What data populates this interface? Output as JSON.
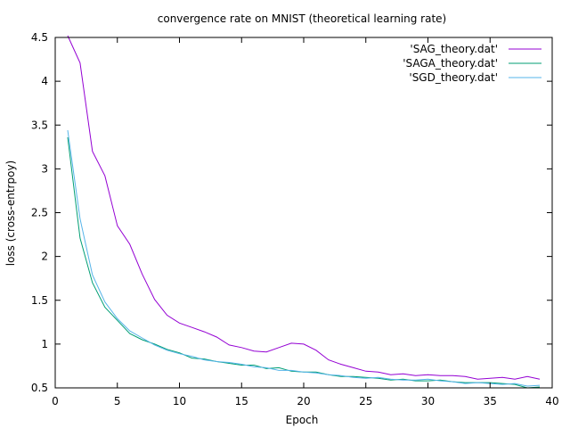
{
  "chart_data": {
    "type": "line",
    "title": "convergence rate on MNIST (theoretical learning rate)",
    "xlabel": "Epoch",
    "ylabel": "loss (cross-entrpoy)",
    "xlim": [
      0,
      40
    ],
    "ylim": [
      0.5,
      4.5
    ],
    "xticks": [
      0,
      5,
      10,
      15,
      20,
      25,
      30,
      35,
      40
    ],
    "yticks": [
      0.5,
      1,
      1.5,
      2,
      2.5,
      3,
      3.5,
      4,
      4.5
    ],
    "xtick_labels": [
      "0",
      "5",
      "10",
      "15",
      "20",
      "25",
      "30",
      "35",
      "40"
    ],
    "ytick_labels": [
      "0.5",
      "1",
      "1.5",
      "2",
      "2.5",
      "3",
      "3.5",
      "4",
      "4.5"
    ],
    "grid": false,
    "legend_position": "top-right",
    "series": [
      {
        "name": "'SAG_theory.dat'",
        "color": "#9400d3",
        "x": [
          1,
          2,
          3,
          4,
          5,
          6,
          7,
          8,
          9,
          10,
          11,
          12,
          13,
          14,
          15,
          16,
          17,
          18,
          19,
          20,
          21,
          22,
          23,
          24,
          25,
          26,
          27,
          28,
          29,
          30,
          31,
          32,
          33,
          34,
          35,
          36,
          37,
          38,
          39
        ],
        "y": [
          4.52,
          4.21,
          3.2,
          2.92,
          2.35,
          2.14,
          1.8,
          1.51,
          1.33,
          1.24,
          1.19,
          1.14,
          1.08,
          0.99,
          0.96,
          0.92,
          0.91,
          0.96,
          1.01,
          1.0,
          0.93,
          0.82,
          0.77,
          0.73,
          0.69,
          0.68,
          0.65,
          0.66,
          0.64,
          0.65,
          0.64,
          0.64,
          0.63,
          0.6,
          0.61,
          0.62,
          0.6,
          0.63,
          0.6
        ]
      },
      {
        "name": "'SAGA_theory.dat'",
        "color": "#009e73",
        "x": [
          1,
          2,
          3,
          4,
          5,
          6,
          7,
          8,
          9,
          10,
          11,
          12,
          13,
          14,
          15,
          16,
          17,
          18,
          19,
          20,
          21,
          22,
          23,
          24,
          25,
          26,
          27,
          28,
          29,
          30,
          31,
          32,
          33,
          34,
          35,
          36,
          37,
          38,
          39
        ],
        "y": [
          3.36,
          2.21,
          1.7,
          1.42,
          1.27,
          1.12,
          1.05,
          1.0,
          0.94,
          0.9,
          0.84,
          0.83,
          0.8,
          0.78,
          0.76,
          0.76,
          0.72,
          0.73,
          0.69,
          0.68,
          0.68,
          0.65,
          0.63,
          0.63,
          0.62,
          0.61,
          0.59,
          0.6,
          0.58,
          0.58,
          0.59,
          0.57,
          0.56,
          0.56,
          0.56,
          0.55,
          0.54,
          0.5,
          0.51
        ]
      },
      {
        "name": "'SGD_theory.dat'",
        "color": "#56b4e9",
        "x": [
          1,
          2,
          3,
          4,
          5,
          6,
          7,
          8,
          9,
          10,
          11,
          12,
          13,
          14,
          15,
          16,
          17,
          18,
          19,
          20,
          21,
          22,
          23,
          24,
          25,
          26,
          27,
          28,
          29,
          30,
          31,
          32,
          33,
          34,
          35,
          36,
          37,
          38,
          39
        ],
        "y": [
          3.44,
          2.43,
          1.79,
          1.48,
          1.29,
          1.15,
          1.07,
          0.99,
          0.93,
          0.89,
          0.86,
          0.82,
          0.8,
          0.79,
          0.77,
          0.74,
          0.73,
          0.7,
          0.7,
          0.68,
          0.67,
          0.65,
          0.64,
          0.62,
          0.61,
          0.62,
          0.6,
          0.59,
          0.59,
          0.6,
          0.58,
          0.57,
          0.55,
          0.56,
          0.55,
          0.54,
          0.55,
          0.52,
          0.53
        ]
      }
    ]
  }
}
